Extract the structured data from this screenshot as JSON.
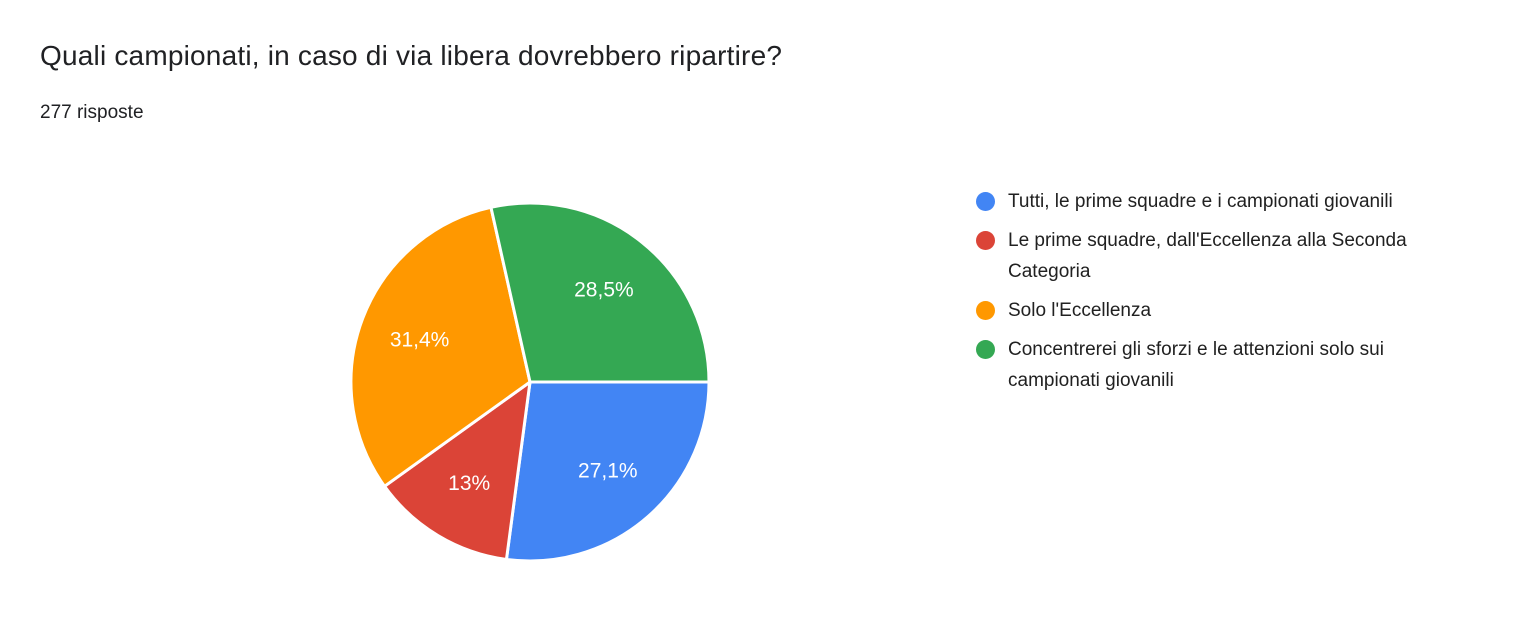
{
  "header": {
    "title": "Quali campionati, in caso di via libera dovrebbero ripartire?",
    "responses": "277 risposte"
  },
  "chart_data": {
    "type": "pie",
    "title": "Quali campionati, in caso di via libera dovrebbero ripartire?",
    "responses_count": 277,
    "legend_position": "right",
    "direction": "clockwise",
    "rotation_deg": 90,
    "slice_gap_color": "#ffffff",
    "label_color": "#ffffff",
    "slices": [
      {
        "label": "Tutti, le prime squadre e i campionati giovanili",
        "value": 27.1,
        "display": "27,1%",
        "color": "#4285F4"
      },
      {
        "label": "Le prime squadre, dall'Eccellenza alla Seconda Categoria",
        "value": 13,
        "display": "13%",
        "color": "#DB4437"
      },
      {
        "label": "Solo l'Eccellenza",
        "value": 31.4,
        "display": "31,4%",
        "color": "#FF9800"
      },
      {
        "label": "Concentrerei gli sforzi e le attenzioni solo sui campionati giovanili",
        "value": 28.5,
        "display": "28,5%",
        "color": "#34A853"
      }
    ]
  }
}
